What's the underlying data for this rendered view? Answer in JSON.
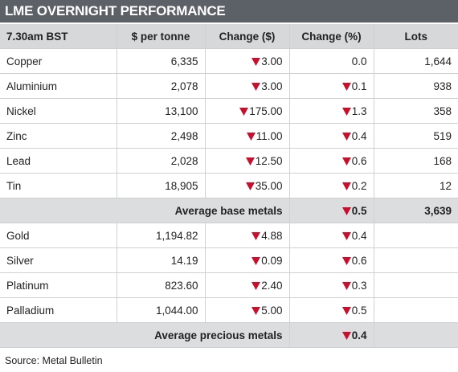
{
  "title": "LME OVERNIGHT PERFORMANCE",
  "table": {
    "header": [
      "7.30am BST",
      "$ per tonne",
      "Change ($)",
      "Change (%)",
      "Lots"
    ],
    "sections": [
      {
        "rows": [
          [
            "Copper",
            "6,335",
            {
              "trend": "down",
              "text": "3.00"
            },
            "0.0",
            "1,644"
          ],
          [
            "Aluminium",
            "2,078",
            {
              "trend": "down",
              "text": "3.00"
            },
            {
              "trend": "down",
              "text": "0.1"
            },
            "938"
          ],
          [
            "Nickel",
            "13,100",
            {
              "trend": "down",
              "text": "175.00"
            },
            {
              "trend": "down",
              "text": "1.3"
            },
            "358"
          ],
          [
            "Zinc",
            "2,498",
            {
              "trend": "down",
              "text": "11.00"
            },
            {
              "trend": "down",
              "text": "0.4"
            },
            "519"
          ],
          [
            "Lead",
            "2,028",
            {
              "trend": "down",
              "text": "12.50"
            },
            {
              "trend": "down",
              "text": "0.6"
            },
            "168"
          ],
          [
            "Tin",
            "18,905",
            {
              "trend": "down",
              "text": "35.00"
            },
            {
              "trend": "down",
              "text": "0.2"
            },
            "12"
          ]
        ],
        "summary": {
          "label": "Average base metals",
          "change_pct": {
            "trend": "down",
            "text": "0.5"
          },
          "lots": "3,639"
        }
      },
      {
        "rows": [
          [
            "Gold",
            "1,194.82",
            {
              "trend": "down",
              "text": "4.88"
            },
            {
              "trend": "down",
              "text": "0.4"
            }
          ],
          [
            "Silver",
            "14.19",
            {
              "trend": "down",
              "text": "0.09"
            },
            {
              "trend": "down",
              "text": "0.6"
            }
          ],
          [
            "Platinum",
            "823.60",
            {
              "trend": "down",
              "text": "2.40"
            },
            {
              "trend": "down",
              "text": "0.3"
            }
          ],
          [
            "Palladium",
            "1,044.00",
            {
              "trend": "down",
              "text": "5.00"
            },
            {
              "trend": "down",
              "text": "0.5"
            }
          ]
        ],
        "summary": {
          "label": "Average precious metals",
          "change_pct": {
            "trend": "down",
            "text": "0.4"
          }
        }
      }
    ]
  },
  "source": "Source: Metal Bulletin"
}
